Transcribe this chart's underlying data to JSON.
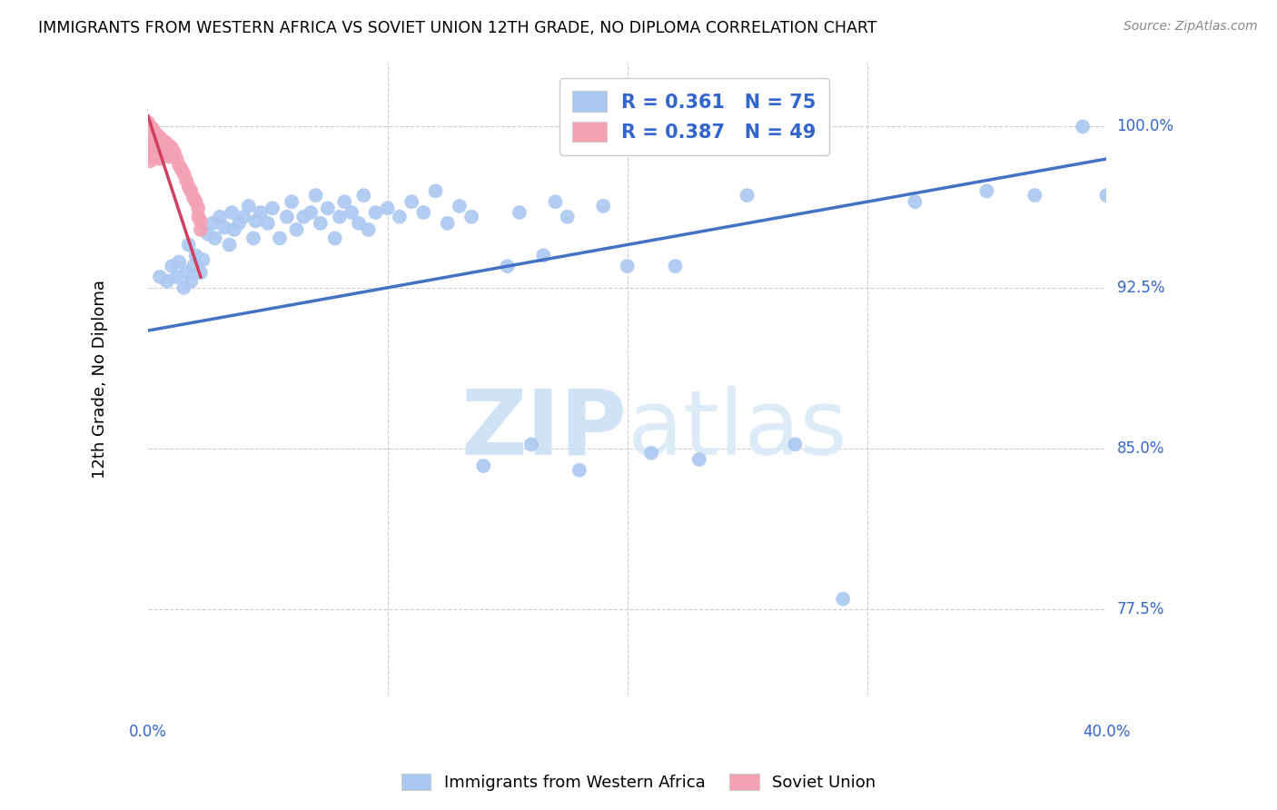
{
  "title": "IMMIGRANTS FROM WESTERN AFRICA VS SOVIET UNION 12TH GRADE, NO DIPLOMA CORRELATION CHART",
  "source": "Source: ZipAtlas.com",
  "xmin": 0.0,
  "xmax": 0.4,
  "ymin": 0.735,
  "ymax": 1.03,
  "blue_color": "#aac8f0",
  "blue_line_color": "#4472c4",
  "pink_color": "#f4a0b5",
  "pink_line_color": "#d04060",
  "watermark_zip": "ZIP",
  "watermark_atlas": "atlas",
  "legend_label_blue": "Immigrants from Western Africa",
  "legend_label_pink": "Soviet Union",
  "legend_r1": "R = 0.361",
  "legend_n1": "N = 75",
  "legend_r2": "R = 0.387",
  "legend_n2": "N = 49",
  "blue_line_x0": 0.0,
  "blue_line_y0": 0.905,
  "blue_line_x1": 0.4,
  "blue_line_y1": 0.985,
  "pink_line_x0": 0.0,
  "pink_line_y0": 1.005,
  "pink_line_x1": 0.022,
  "pink_line_y1": 0.93,
  "blue_x": [
    0.005,
    0.008,
    0.01,
    0.012,
    0.013,
    0.015,
    0.016,
    0.017,
    0.018,
    0.019,
    0.02,
    0.022,
    0.023,
    0.025,
    0.027,
    0.028,
    0.03,
    0.032,
    0.034,
    0.035,
    0.036,
    0.038,
    0.04,
    0.042,
    0.044,
    0.045,
    0.047,
    0.05,
    0.052,
    0.055,
    0.058,
    0.06,
    0.062,
    0.065,
    0.068,
    0.07,
    0.072,
    0.075,
    0.078,
    0.08,
    0.082,
    0.085,
    0.088,
    0.09,
    0.092,
    0.095,
    0.1,
    0.105,
    0.11,
    0.115,
    0.12,
    0.125,
    0.13,
    0.135,
    0.14,
    0.15,
    0.155,
    0.16,
    0.165,
    0.17,
    0.175,
    0.18,
    0.19,
    0.2,
    0.21,
    0.22,
    0.23,
    0.25,
    0.27,
    0.29,
    0.32,
    0.35,
    0.37,
    0.39,
    0.4
  ],
  "blue_y": [
    0.93,
    0.928,
    0.935,
    0.93,
    0.937,
    0.925,
    0.932,
    0.945,
    0.928,
    0.935,
    0.94,
    0.932,
    0.938,
    0.95,
    0.955,
    0.948,
    0.958,
    0.953,
    0.945,
    0.96,
    0.952,
    0.955,
    0.958,
    0.963,
    0.948,
    0.956,
    0.96,
    0.955,
    0.962,
    0.948,
    0.958,
    0.965,
    0.952,
    0.958,
    0.96,
    0.968,
    0.955,
    0.962,
    0.948,
    0.958,
    0.965,
    0.96,
    0.955,
    0.968,
    0.952,
    0.96,
    0.962,
    0.958,
    0.965,
    0.96,
    0.97,
    0.955,
    0.963,
    0.958,
    0.842,
    0.935,
    0.96,
    0.852,
    0.94,
    0.965,
    0.958,
    0.84,
    0.963,
    0.935,
    0.848,
    0.935,
    0.845,
    0.968,
    0.852,
    0.78,
    0.965,
    0.97,
    0.968,
    1.0,
    0.968
  ],
  "pink_x": [
    0.0,
    0.0,
    0.0,
    0.0,
    0.0,
    0.001,
    0.001,
    0.001,
    0.001,
    0.001,
    0.001,
    0.002,
    0.002,
    0.002,
    0.002,
    0.002,
    0.003,
    0.003,
    0.003,
    0.003,
    0.004,
    0.004,
    0.004,
    0.005,
    0.005,
    0.005,
    0.006,
    0.006,
    0.007,
    0.007,
    0.008,
    0.008,
    0.009,
    0.009,
    0.01,
    0.011,
    0.012,
    0.013,
    0.014,
    0.015,
    0.016,
    0.017,
    0.018,
    0.019,
    0.02,
    0.021,
    0.021,
    0.022,
    0.022
  ],
  "pink_y": [
    1.002,
    1.0,
    0.998,
    0.996,
    0.993,
    1.0,
    0.998,
    0.996,
    0.992,
    0.988,
    0.984,
    0.999,
    0.997,
    0.994,
    0.99,
    0.986,
    0.997,
    0.994,
    0.99,
    0.986,
    0.996,
    0.992,
    0.987,
    0.995,
    0.991,
    0.985,
    0.993,
    0.988,
    0.993,
    0.988,
    0.992,
    0.987,
    0.991,
    0.986,
    0.99,
    0.988,
    0.985,
    0.982,
    0.98,
    0.978,
    0.975,
    0.972,
    0.97,
    0.967,
    0.965,
    0.962,
    0.958,
    0.956,
    0.952
  ]
}
